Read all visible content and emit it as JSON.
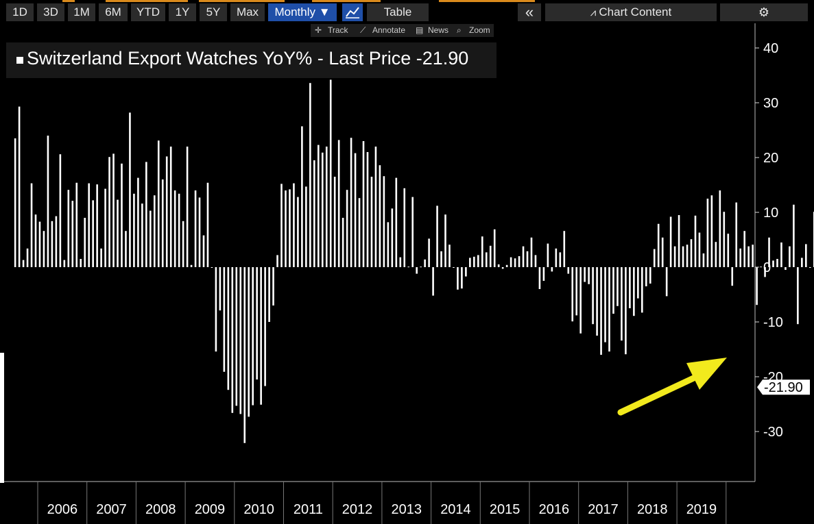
{
  "toolbar": {
    "ranges": [
      "1D",
      "3D",
      "1M",
      "6M",
      "YTD",
      "1Y",
      "5Y",
      "Max"
    ],
    "frequency": "Monthly ▼",
    "table_label": "Table",
    "collapse_label": "«",
    "chart_content_label": "Chart Content"
  },
  "subtoolbar": {
    "track": "Track",
    "annotate": "Annotate",
    "news": "News",
    "zoom": "Zoom"
  },
  "legend": {
    "text": "Switzerland Export Watches YoY% - Last Price -21.90"
  },
  "colors": {
    "background": "#000000",
    "bars": "#ffffff",
    "arrow": "#f2ea1d",
    "active_button": "#1f4fa8"
  },
  "chart_data": {
    "type": "bar",
    "title": "Switzerland Export Watches YoY% - Last Price -21.90",
    "y_ticks": [
      40,
      30,
      20,
      10,
      0,
      -10,
      -20,
      -30
    ],
    "ylim": [
      -39,
      44
    ],
    "x_labels": [
      "2006",
      "2007",
      "2008",
      "2009",
      "2010",
      "2011",
      "2012",
      "2013",
      "2014",
      "2015",
      "2016",
      "2017",
      "2018",
      "2019"
    ],
    "frequency": "monthly",
    "start": "2005-07",
    "end": "2019-11",
    "last_value": -21.9,
    "last_value_label": "-21.90",
    "annotation": "yellow arrow pointing at latest bar",
    "values": [
      23.5,
      29.3,
      1.3,
      3.4,
      15.3,
      9.6,
      8.3,
      6.6,
      24.0,
      8.4,
      9.3,
      20.6,
      1.3,
      14.1,
      12.1,
      15.4,
      1.5,
      9.0,
      15.3,
      12.2,
      15.1,
      3.4,
      14.3,
      20.1,
      20.7,
      12.3,
      18.9,
      6.6,
      28.2,
      13.4,
      16.3,
      11.6,
      19.2,
      10.3,
      13.1,
      23.1,
      16.0,
      20.2,
      22.0,
      14.0,
      13.4,
      8.4,
      22.0,
      0.4,
      14.0,
      12.7,
      5.8,
      15.4,
      -0.1,
      -15.4,
      -7.9,
      -19.1,
      -22.4,
      -26.6,
      -25.3,
      -26.8,
      -32.1,
      -27.3,
      -25.2,
      -20.5,
      -25.1,
      -21.7,
      -10.0,
      -7.0,
      2.2,
      15.2,
      14.0,
      14.2,
      15.3,
      12.8,
      25.7,
      14.7,
      33.6,
      19.5,
      22.3,
      20.9,
      22.0,
      34.2,
      16.5,
      23.2,
      9.0,
      14.1,
      23.6,
      20.8,
      12.6,
      23.0,
      21.0,
      16.5,
      22.0,
      18.6,
      16.6,
      8.2,
      10.7,
      16.3,
      1.8,
      14.4,
      0.1,
      12.8,
      -1.2,
      0.1,
      1.4,
      5.2,
      -5.2,
      11.2,
      2.9,
      9.6,
      4.1,
      -0.1,
      -4.1,
      -3.9,
      -1.7,
      1.7,
      1.9,
      2.2,
      5.6,
      2.7,
      3.9,
      6.9,
      0.5,
      -0.3,
      0.4,
      1.8,
      1.6,
      2.0,
      3.8,
      2.9,
      5.4,
      2.2,
      -4.0,
      -2.5,
      4.3,
      -0.8,
      3.4,
      2.7,
      6.6,
      -1.2,
      -9.9,
      -8.8,
      -12.1,
      -2.7,
      -3.1,
      -10.4,
      -12.5,
      -16.0,
      -13.7,
      -15.4,
      -8.5,
      -7.1,
      -13.4,
      -15.9,
      -7.5,
      -8.9,
      -5.7,
      -8.3,
      -3.5,
      -3.0,
      3.3,
      7.9,
      5.4,
      -5.3,
      9.2,
      3.8,
      9.5,
      3.8,
      4.1,
      5.1,
      9.4,
      6.3,
      2.5,
      12.5,
      13.1,
      4.6,
      14.0,
      10.1,
      6.1,
      -3.4,
      11.8,
      3.4,
      6.6,
      3.8,
      4.1,
      -6.9,
      0.1,
      -1.8,
      5.4,
      1.2,
      1.5,
      4.5,
      -0.5,
      3.8,
      11.4,
      -10.4,
      1.7,
      4.2,
      -0.1,
      10.1,
      1.4,
      -3.4,
      8.0,
      9.5,
      1.0,
      -1.9,
      -8.9,
      -21.9
    ]
  }
}
